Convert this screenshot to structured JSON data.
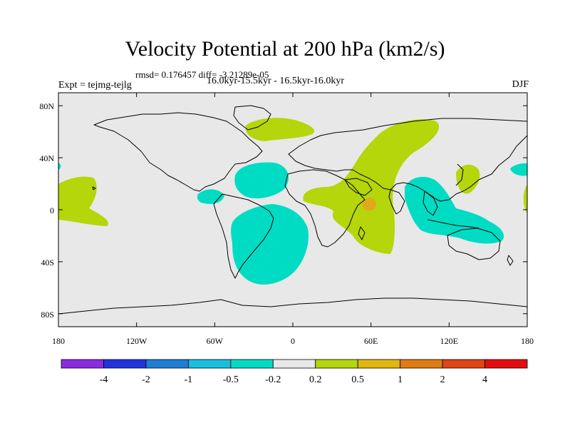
{
  "title": "Velocity Potential at 200 hPa (km2/s)",
  "stats": "rmsd= 0.176457 diff= -3.21289e-05",
  "experiment": "Expt = tejmg-tejlg",
  "period": "16.0kyr-15.5kyr - 16.5kyr-16.0kyr",
  "season": "DJF",
  "colors": {
    "ocean": "#e8e8e8",
    "coast": "#000000",
    "positive_fill": "#b4d60a",
    "negative_fill": "#00dcc4",
    "peak_fill": "#e1a81a"
  },
  "map": {
    "x_ticks": [
      {
        "lon": -180,
        "label": "180"
      },
      {
        "lon": -120,
        "label": "120W"
      },
      {
        "lon": -60,
        "label": "60W"
      },
      {
        "lon": 0,
        "label": "0"
      },
      {
        "lon": 60,
        "label": "60E"
      },
      {
        "lon": 120,
        "label": "120E"
      },
      {
        "lon": 180,
        "label": "180"
      }
    ],
    "y_ticks": [
      {
        "lat": 80,
        "label": "80N"
      },
      {
        "lat": 40,
        "label": "40N"
      },
      {
        "lat": 0,
        "label": "0"
      },
      {
        "lat": -40,
        "label": "40S"
      },
      {
        "lat": -80,
        "label": "80S"
      }
    ],
    "lon_range": [
      -180,
      180
    ],
    "lat_range": [
      -90,
      90
    ]
  },
  "colorbar": {
    "colors": [
      "#8a2be2",
      "#2233dd",
      "#1f7fd4",
      "#18bee0",
      "#00dcc4",
      "#e8e8e8",
      "#b4d60a",
      "#e1b60f",
      "#e07c10",
      "#e24414",
      "#e40d0d"
    ],
    "labels": [
      "-4",
      "-2",
      "-1",
      "-0.5",
      "-0.2",
      "0.2",
      "0.5",
      "1",
      "2",
      "4"
    ]
  }
}
